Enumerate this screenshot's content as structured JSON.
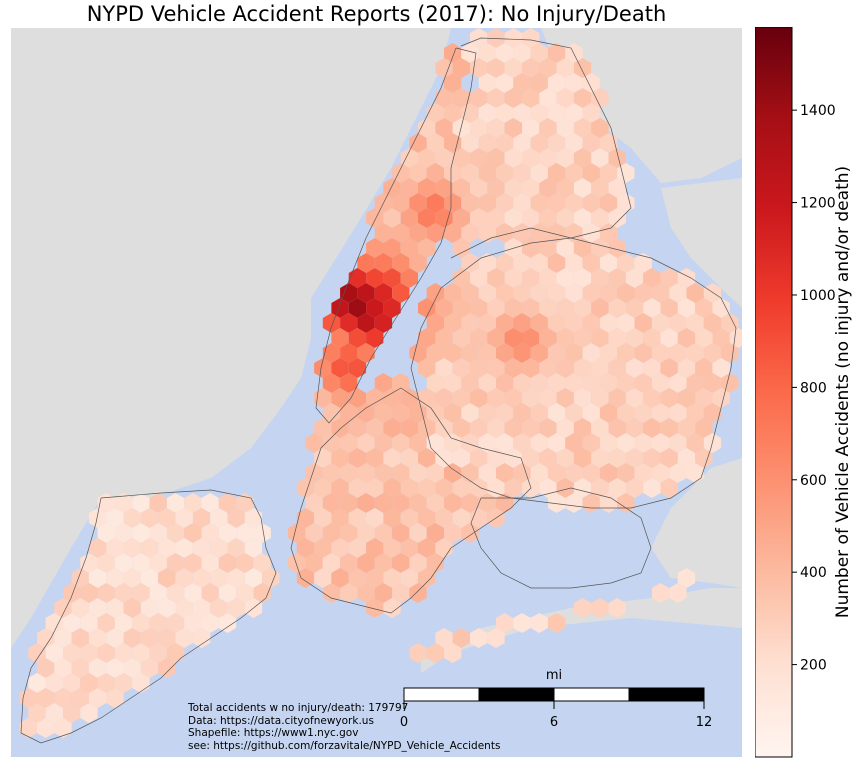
{
  "title": "NYPD Vehicle Accident Reports (2017): No Injury/Death",
  "chart_data": {
    "type": "heatmap",
    "title": "NYPD Vehicle Accident Reports (2017): No Injury/Death",
    "colorbar": {
      "label": "Number of Vehicle Accidents (no injury and/or death)",
      "ticks": [
        200,
        400,
        600,
        800,
        1000,
        1200,
        1400
      ],
      "range": [
        0,
        1580
      ],
      "colormap": "Reds"
    },
    "hotspots": [
      {
        "value": 1580
      },
      {
        "value": 1400
      },
      {
        "value": 1300
      },
      {
        "value": 1250
      },
      {
        "value": 1150
      },
      {
        "value": 1100
      },
      {
        "value": 1000
      },
      {
        "value": 900
      },
      {
        "value": 800
      },
      {
        "value": 700
      }
    ],
    "scale_bar": {
      "unit": "mi",
      "ticks": [
        "0",
        "6",
        "12"
      ]
    }
  },
  "notes": [
    "Total accidents w no injury/death: 179797",
    "Data: https://data.cityofnewyork.us",
    "Shapefile: https://www1.nyc.gov",
    "see: https://github.com/forzavitale/NYPD_Vehicle_Accidents"
  ],
  "colors": {
    "water": "#c5d5f1",
    "land": "#dedede",
    "border": "#555555"
  }
}
